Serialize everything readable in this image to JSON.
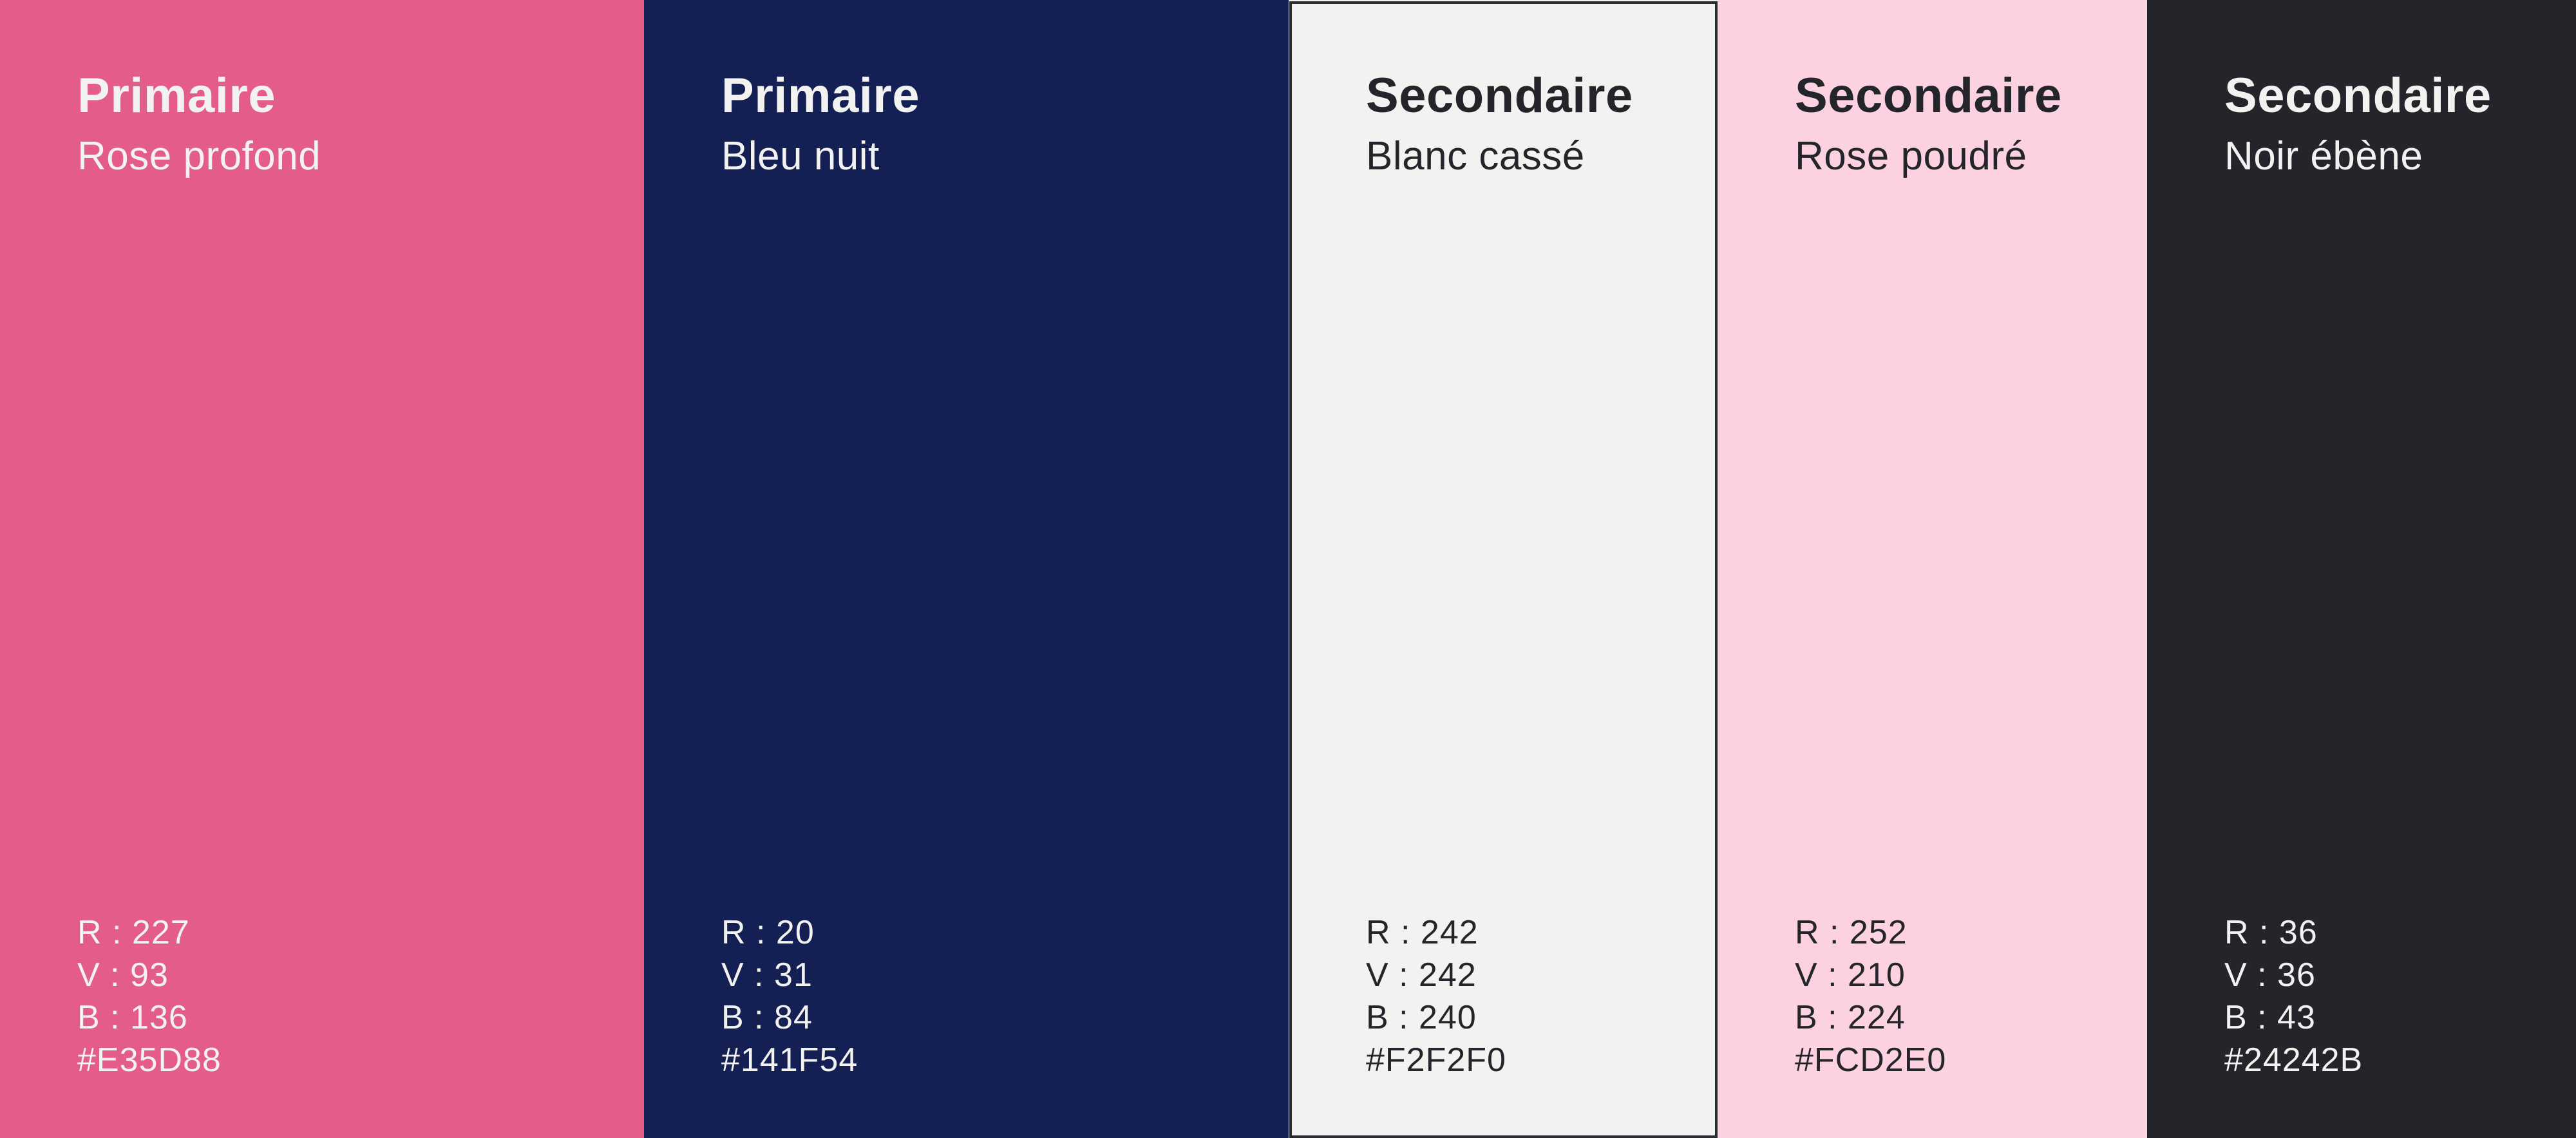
{
  "palette": {
    "swatches": [
      {
        "category": "Primaire",
        "name": "Rose profond",
        "hex": "#E35D88",
        "text_color": "#F2F2F0",
        "outlined": false,
        "lines": [
          "R : 227",
          "V : 93",
          "B : 136",
          "#E35D88"
        ]
      },
      {
        "category": "Primaire",
        "name": "Bleu nuit",
        "hex": "#141F54",
        "text_color": "#F2F2F0",
        "outlined": false,
        "lines": [
          "R : 20",
          "V : 31",
          "B : 84",
          "#141F54"
        ]
      },
      {
        "category": "Secondaire",
        "name": "Blanc cassé",
        "hex": "#F2F2F0",
        "text_color": "#24242B",
        "outlined": true,
        "outline_color": "#2B2B30",
        "lines": [
          "R : 242",
          "V : 242",
          "B : 240",
          "#F2F2F0"
        ]
      },
      {
        "category": "Secondaire",
        "name": "Rose poudré",
        "hex": "#FCD2E0",
        "text_color": "#24242B",
        "outlined": false,
        "lines": [
          "R : 252",
          "V : 210",
          "B : 224",
          "#FCD2E0"
        ]
      },
      {
        "category": "Secondaire",
        "name": "Noir ébène",
        "hex": "#24242B",
        "text_color": "#F2F2F0",
        "outlined": false,
        "lines": [
          "R : 36",
          "V : 36",
          "B : 43",
          "#24242B"
        ]
      }
    ]
  }
}
